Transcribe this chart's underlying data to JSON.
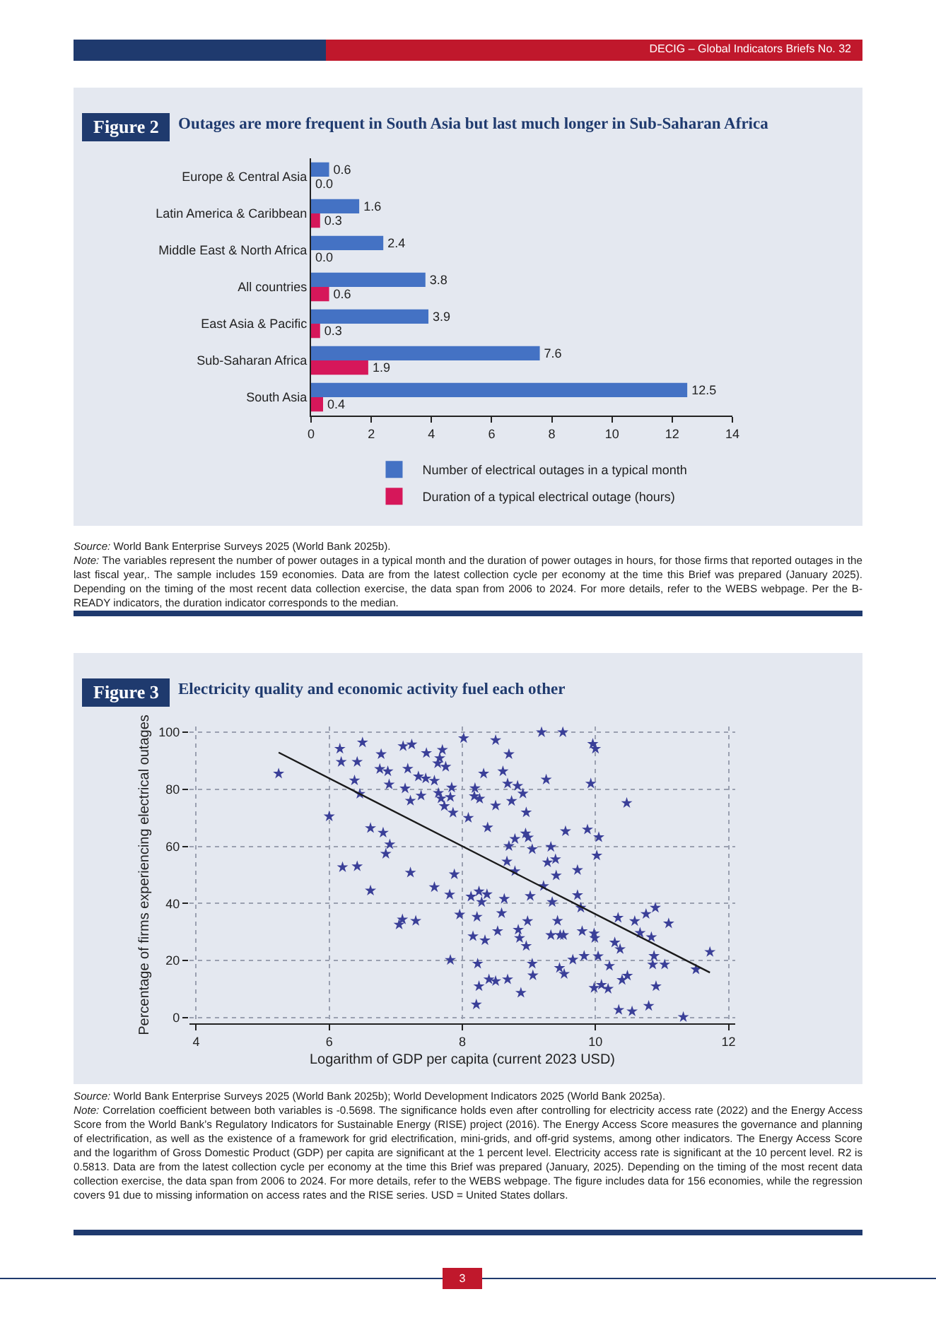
{
  "chart_data": [
    {
      "type": "bar",
      "orientation": "horizontal",
      "title": "Outages are more frequent in South Asia but last much longer in Sub-Saharan Africa",
      "categories": [
        "Europe & Central Asia",
        "Latin America & Caribbean",
        "Middle East & North Africa",
        "All countries",
        "East Asia & Pacific",
        "Sub-Saharan Africa",
        "South Asia"
      ],
      "series": [
        {
          "name": "Number of electrical outages in a typical month",
          "color": "#4472c4",
          "values": [
            0.6,
            1.6,
            2.4,
            3.8,
            3.9,
            7.6,
            12.5
          ],
          "value_labels": [
            "0.6",
            "1.6",
            "2.4",
            "3.8",
            "3.9",
            "7.6",
            "12.5"
          ]
        },
        {
          "name": "Duration of a typical electrical outage (hours)",
          "color": "#d6175a",
          "values": [
            0,
            0.3,
            0,
            0.6,
            0.3,
            1.9,
            0.4
          ],
          "value_labels": [
            "0.0",
            "0.3",
            "0.0",
            "0.6",
            "0.3",
            "1.9",
            "0.4"
          ]
        }
      ],
      "xlim": [
        0,
        14
      ],
      "xticks": [
        0,
        2,
        4,
        6,
        8,
        10,
        12,
        14
      ],
      "grid": false,
      "legend": "bottom",
      "annotations": [
        "DECIG – Global Indicators Briefs No. 32",
        "Figure 2",
        "Source: World Bank Enterprise Surveys 2025 (World Bank 2025b).",
        "Note: The variables represent the number of power outages in a typical month and the duration of power outages in hours, for those firms that reported outages in the last fiscal year,. The sample includes 159 economies. Data are from the latest collection cycle per economy at the time this Brief was prepared (January 2025). Depending on the timing of the most recent data collection exercise, the data span from 2006 to 2024. For more details, refer to the WEBS webpage. Per the B-READY indicators, the duration indicator corresponds to the median."
      ]
    },
    {
      "type": "scatter",
      "title": "Electricity quality and economic activity fuel each other",
      "xlabel": "Logarithm of GDP per capita (current 2023 USD)",
      "ylabel": "Percentage of firms experiencing electrical outages",
      "series": [
        {
          "color": "#3a3f98",
          "marker": "star",
          "x": [
            5.24,
            6.0,
            6.16,
            6.18,
            6.5,
            6.38,
            6.42,
            6.46,
            6.2,
            6.42,
            6.62,
            6.81,
            6.91,
            6.85,
            6.62,
            6.78,
            6.76,
            6.88,
            6.9,
            7.11,
            7.24,
            7.14,
            7.18,
            7.22,
            7.34,
            7.38,
            7.45,
            7.46,
            7.58,
            7.63,
            7.66,
            7.7,
            7.64,
            7.68,
            7.73,
            7.75,
            7.82,
            7.84,
            7.86,
            8.02,
            7.22,
            7.88,
            7.58,
            7.81,
            7.05,
            7.1,
            7.3,
            7.82,
            7.96,
            8.5,
            8.7,
            8.32,
            8.61,
            8.68,
            8.83,
            8.91,
            8.74,
            8.5,
            8.19,
            8.18,
            8.26,
            8.09,
            8.38,
            8.96,
            9.19,
            9.51,
            9.26,
            9.96,
            10.0,
            9.93,
            10.47,
            9.55,
            9.88,
            10.05,
            8.95,
            8.99,
            8.79,
            8.7,
            9.05,
            9.33,
            9.4,
            9.28,
            8.67,
            8.79,
            9.41,
            9.22,
            9.73,
            10.02,
            8.13,
            8.25,
            8.29,
            8.37,
            8.63,
            9.02,
            9.35,
            9.73,
            9.78,
            8.22,
            8.59,
            8.98,
            9.43,
            8.16,
            8.34,
            8.53,
            8.84,
            8.86,
            8.96,
            9.33,
            9.47,
            9.52,
            9.8,
            9.98,
            9.99,
            10.34,
            10.59,
            10.76,
            10.9,
            11.1,
            10.67,
            10.84,
            10.29,
            10.37,
            10.88,
            10.86,
            11.04,
            11.51,
            11.72,
            8.23,
            9.05,
            9.66,
            9.83,
            10.04,
            10.21,
            9.46,
            9.53,
            9.06,
            10.48,
            10.4,
            8.4,
            8.5,
            8.68,
            8.25,
            8.88,
            9.98,
            10.09,
            10.19,
            10.91,
            10.35,
            10.55,
            10.8,
            11.32,
            8.21
          ],
          "values": [
            85.5,
            70.5,
            94.2,
            89.6,
            96.4,
            83.1,
            89.6,
            78.4,
            52.7,
            53.0,
            66.4,
            64.8,
            60.7,
            57.4,
            44.5,
            92.3,
            87.1,
            86.3,
            81.7,
            95.1,
            95.7,
            80.3,
            87.2,
            76.0,
            84.5,
            77.8,
            83.8,
            92.7,
            83.0,
            89.1,
            90.9,
            93.8,
            78.7,
            76.8,
            74.1,
            87.9,
            77.3,
            80.6,
            71.8,
            97.9,
            50.8,
            50.2,
            45.7,
            43.1,
            32.6,
            34.4,
            33.9,
            20.2,
            36.1,
            97.2,
            92.3,
            85.5,
            86.3,
            82.0,
            81.2,
            78.5,
            75.9,
            74.3,
            80.4,
            77.6,
            76.7,
            70.0,
            66.6,
            71.9,
            100,
            100,
            83.4,
            95.9,
            94.2,
            82.0,
            75.2,
            65.3,
            65.9,
            63.2,
            64.5,
            63.1,
            62.6,
            60.1,
            59.0,
            59.8,
            55.5,
            54.4,
            54.7,
            51.3,
            49.8,
            46.1,
            51.7,
            56.8,
            42.4,
            44.2,
            40.5,
            43.2,
            41.6,
            42.6,
            40.5,
            42.9,
            38.5,
            35.3,
            36.6,
            33.8,
            33.9,
            28.5,
            27.1,
            30.3,
            30.8,
            27.9,
            25.1,
            28.9,
            28.9,
            28.9,
            30.3,
            29.5,
            27.9,
            35.0,
            33.8,
            36.3,
            38.5,
            33.0,
            29.7,
            28.2,
            26.3,
            24.0,
            21.6,
            18.6,
            18.6,
            16.9,
            23.0,
            18.9,
            18.9,
            20.3,
            21.6,
            21.5,
            18.1,
            17.4,
            15.3,
            14.8,
            14.7,
            13.2,
            13.4,
            12.8,
            13.4,
            11.0,
            8.7,
            10.4,
            11.5,
            10.1,
            11.0,
            2.7,
            2.2,
            4.1,
            0.2,
            4.6
          ]
        },
        {
          "type": "line",
          "color": "#1a1a1a",
          "line_style": "solid",
          "marker": "none",
          "x": [
            5.24,
            11.72
          ],
          "values": [
            92.9,
            15.8
          ]
        }
      ],
      "xlim": [
        3.9,
        12.1
      ],
      "xticks": [
        4,
        6,
        8,
        10,
        12
      ],
      "ylim": [
        -2,
        102
      ],
      "yticks": [
        0,
        20,
        40,
        60,
        80,
        100
      ],
      "grid": true,
      "legend": false,
      "annotations": [
        "Figure 3",
        "Source: World Bank Enterprise Surveys 2025 (World Bank 2025b); World Development Indicators 2025 (World Bank 2025a).",
        "Note: Correlation coefficient between both variables is -0.5698. The significance holds even after controlling for electricity access rate (2022) and the Energy Access Score from the World Bank’s Regulatory Indicators for Sustainable Energy (RISE) project (2016). The Energy Access Score measures the governance and planning of electrification, as well as the existence of a framework for grid electrification, mini-grids, and off-grid systems, among other indicators. The Energy Access Score and the logarithm of Gross Domestic Product (GDP) per capita are significant at the 1 percent level. Electricity access rate is significant at the 10 percent level. R2 is 0.5813. Data are from the latest collection cycle per economy at the time this Brief was prepared (January, 2025). Depending on the timing of the most recent data collection exercise, the data span from 2006 to 2024. For more details, refer to the WEBS webpage. The figure includes data for 156 economies, while the regression covers 91 due to missing information on access rates and the RISE series. USD = United States dollars.",
        "3"
      ]
    }
  ]
}
